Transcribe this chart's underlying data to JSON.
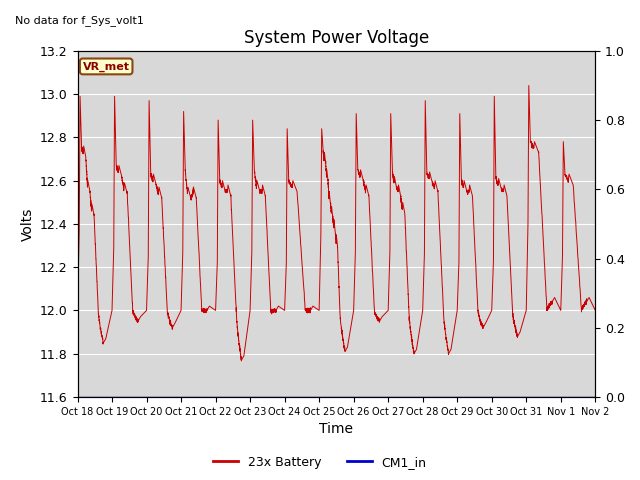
{
  "title": "System Power Voltage",
  "ylabel_left": "Volts",
  "xlabel": "Time",
  "ylim_left": [
    11.6,
    13.2
  ],
  "ylim_right": [
    0.0,
    1.0
  ],
  "background_color": "#ffffff",
  "plot_bg_color": "#d8d8d8",
  "annotation_top_left": "No data for f_Sys_volt1",
  "vr_met_label": "VR_met",
  "legend": [
    "23x Battery",
    "CM1_in"
  ],
  "legend_colors": [
    "#cc0000",
    "#0000cc"
  ],
  "title_fontsize": 12,
  "axis_fontsize": 9,
  "x_tick_labels": [
    "Oct 18",
    "Oct 19",
    "Oct 20",
    "Oct 21",
    "Oct 22",
    "Oct 23",
    "Oct 24",
    "Oct 25",
    "Oct 26",
    "Oct 27",
    "Oct 28",
    "Oct 29",
    "Oct 30",
    "Oct 31",
    "Nov 1",
    "Nov 2"
  ],
  "yticks_left": [
    11.6,
    11.8,
    12.0,
    12.2,
    12.4,
    12.6,
    12.8,
    13.0,
    13.2
  ],
  "yticks_right": [
    0.0,
    0.2,
    0.4,
    0.6,
    0.8,
    1.0
  ],
  "cycles": [
    {
      "peak": 12.99,
      "mid": 12.75,
      "low": 11.85,
      "spikes": [
        12.76,
        12.6,
        12.49
      ]
    },
    {
      "peak": 12.99,
      "mid": 12.67,
      "low": 11.95,
      "spikes": [
        12.67,
        12.59
      ]
    },
    {
      "peak": 12.97,
      "mid": 12.63,
      "low": 11.92,
      "spikes": [
        12.63,
        12.57
      ]
    },
    {
      "peak": 12.92,
      "mid": 12.65,
      "low": 12.0,
      "spikes": [
        12.57,
        12.57
      ]
    },
    {
      "peak": 12.88,
      "mid": 12.6,
      "low": 11.77,
      "spikes": [
        12.6,
        12.58
      ]
    },
    {
      "peak": 12.88,
      "mid": 12.65,
      "low": 12.0,
      "spikes": [
        12.6,
        12.58
      ]
    },
    {
      "peak": 12.84,
      "mid": 12.6,
      "low": 12.0,
      "spikes": [
        12.6
      ]
    },
    {
      "peak": 12.84,
      "mid": 12.73,
      "low": 11.81,
      "spikes": [
        12.73,
        12.65,
        12.55,
        12.48,
        12.42,
        12.35
      ]
    },
    {
      "peak": 12.91,
      "mid": 12.65,
      "low": 11.95,
      "spikes": [
        12.65,
        12.58
      ]
    },
    {
      "peak": 12.91,
      "mid": 12.65,
      "low": 11.8,
      "spikes": [
        12.62,
        12.58,
        12.5
      ]
    },
    {
      "peak": 12.97,
      "mid": 12.64,
      "low": 11.8,
      "spikes": [
        12.64,
        12.6
      ]
    },
    {
      "peak": 12.91,
      "mid": 12.6,
      "low": 11.92,
      "spikes": [
        12.6,
        12.58
      ]
    },
    {
      "peak": 12.99,
      "mid": 12.61,
      "low": 11.88,
      "spikes": [
        12.61,
        12.58
      ]
    },
    {
      "peak": 13.04,
      "mid": 12.78,
      "low": 12.04,
      "spikes": [
        12.78
      ]
    },
    {
      "peak": 12.78,
      "mid": 12.63,
      "low": 12.04,
      "spikes": [
        12.63
      ]
    }
  ]
}
